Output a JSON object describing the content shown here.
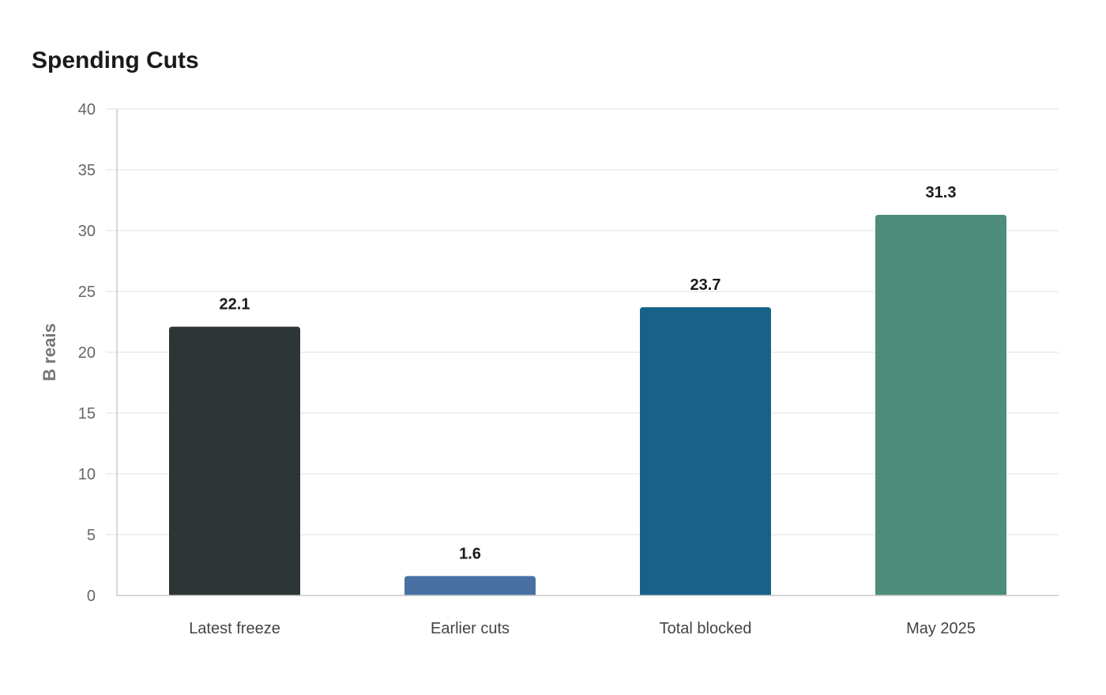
{
  "chart_data": {
    "type": "bar",
    "title": "Spending Cuts",
    "xlabel": "",
    "ylabel": "B reais",
    "ylim": [
      0,
      40
    ],
    "yticks": [
      0,
      5,
      10,
      15,
      20,
      25,
      30,
      35,
      40
    ],
    "grid": true,
    "legend": "none",
    "categories": [
      "Latest freeze",
      "Earlier cuts",
      "Total blocked",
      "May 2025"
    ],
    "values": [
      22.1,
      1.6,
      23.7,
      31.3
    ],
    "value_labels": [
      "22.1",
      "1.6",
      "23.7",
      "31.3"
    ],
    "colors": [
      "#2d3536",
      "#4870a3",
      "#18628a",
      "#4e8c7b"
    ]
  }
}
